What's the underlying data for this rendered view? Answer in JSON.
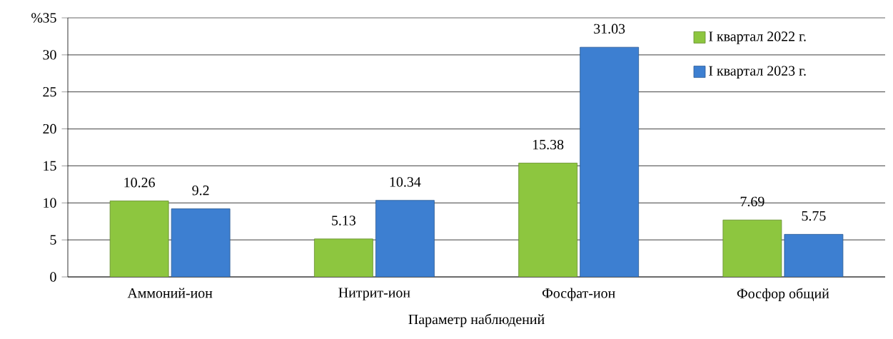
{
  "chart_data": {
    "type": "bar",
    "xlabel": "Параметр  наблюдений",
    "ylabel": "%",
    "categories": [
      "Аммоний-ион",
      "Нитрит-ион",
      "Фосфат-ион",
      "Фосфор общий"
    ],
    "series": [
      {
        "name": "I квартал 2022  г.",
        "color": "#8dc63f",
        "values": [
          10.26,
          5.13,
          15.38,
          7.69
        ]
      },
      {
        "name": "I квартал 2023  г.",
        "color": "#3d7fd1",
        "values": [
          9.2,
          10.34,
          31.03,
          5.75
        ]
      }
    ],
    "ylim": [
      0,
      35
    ],
    "yticks": [
      0,
      5,
      10,
      15,
      20,
      25,
      30,
      35
    ],
    "grid": "y",
    "legend": "top right",
    "data_labels": true
  }
}
